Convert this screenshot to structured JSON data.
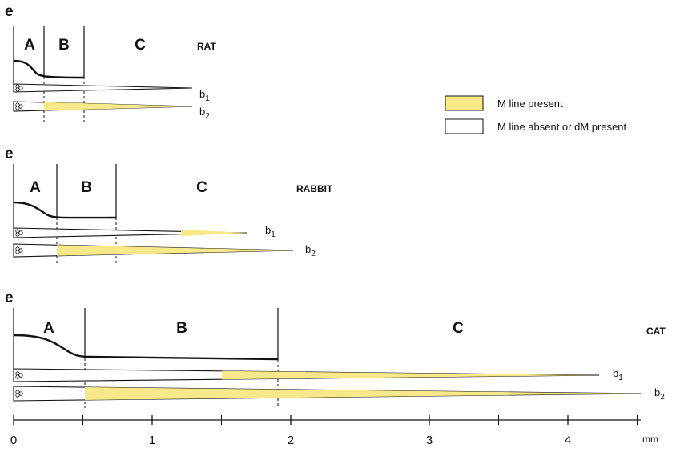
{
  "panels": [
    {
      "key": "rat",
      "e_label": "e",
      "species": "RAT",
      "zones": [
        {
          "label": "A",
          "from_mm": 0,
          "to_mm": 0.22
        },
        {
          "label": "B",
          "from_mm": 0.22,
          "to_mm": 0.51
        },
        {
          "label": "C",
          "from_mm": 0.51,
          "to_mm": null
        }
      ],
      "fibers": [
        {
          "label_base": "b",
          "label_sub": "1",
          "length_mm": 1.3,
          "m_line_from_mm": null
        },
        {
          "label_base": "b",
          "label_sub": "2",
          "length_mm": 1.3,
          "m_line_from_mm": 0.22
        }
      ]
    },
    {
      "key": "rabbit",
      "e_label": "e",
      "species": "RABBIT",
      "zones": [
        {
          "label": "A",
          "from_mm": 0,
          "to_mm": 0.31
        },
        {
          "label": "B",
          "from_mm": 0.31,
          "to_mm": 0.74
        },
        {
          "label": "C",
          "from_mm": 0.74,
          "to_mm": null
        }
      ],
      "fibers": [
        {
          "label_base": "b",
          "label_sub": "1",
          "length_mm": 1.68,
          "m_line_from_mm": 1.22
        },
        {
          "label_base": "b",
          "label_sub": "2",
          "length_mm": 2.02,
          "m_line_from_mm": 0.31
        }
      ]
    },
    {
      "key": "cat",
      "e_label": "e",
      "species": "CAT",
      "zones": [
        {
          "label": "A",
          "from_mm": 0,
          "to_mm": 0.52
        },
        {
          "label": "B",
          "from_mm": 0.52,
          "to_mm": 1.91
        },
        {
          "label": "C",
          "from_mm": 1.91,
          "to_mm": null
        }
      ],
      "fibers": [
        {
          "label_base": "b",
          "label_sub": "1",
          "length_mm": 4.2,
          "m_line_from_mm": 1.51
        },
        {
          "label_base": "b",
          "label_sub": "2",
          "length_mm": 4.5,
          "m_line_from_mm": 0.52
        }
      ]
    }
  ],
  "legend": {
    "items": [
      {
        "key": "present",
        "label": "M line present",
        "color": "#f7e98a"
      },
      {
        "key": "absent",
        "label": "M line absent or dM present",
        "color": "#ffffff"
      }
    ]
  },
  "axis": {
    "ticks": [
      "0",
      "1",
      "2",
      "3",
      "4"
    ],
    "unit": "mm",
    "min_mm": 0,
    "max_mm": 4.6
  }
}
